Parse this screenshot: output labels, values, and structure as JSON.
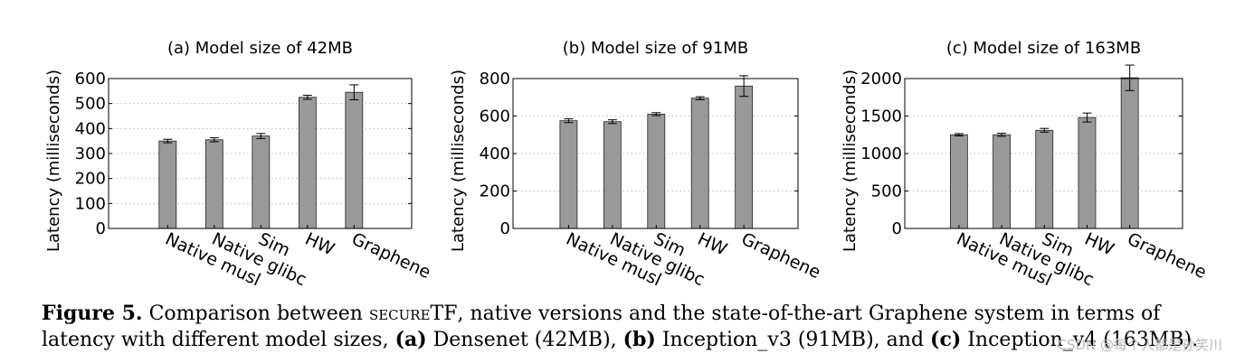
{
  "chart_data": [
    {
      "type": "bar",
      "title": "(a) Model size of 42MB",
      "ylabel": "Latency (milliseconds)",
      "xlabel": "",
      "categories": [
        "Native musl",
        "Native glibc",
        "Sim",
        "HW",
        "Graphene"
      ],
      "values": [
        350,
        355,
        370,
        525,
        545
      ],
      "errors": [
        7,
        8,
        10,
        8,
        30
      ],
      "ylim": [
        0,
        600
      ],
      "yticks": [
        0,
        100,
        200,
        300,
        400,
        500,
        600
      ],
      "grid": true
    },
    {
      "type": "bar",
      "title": "(b) Model size of 91MB",
      "ylabel": "Latency (milliseconds)",
      "xlabel": "",
      "categories": [
        "Native musl",
        "Native glibc",
        "Sim",
        "HW",
        "Graphene"
      ],
      "values": [
        575,
        570,
        610,
        695,
        760
      ],
      "errors": [
        10,
        10,
        8,
        8,
        55
      ],
      "ylim": [
        0,
        800
      ],
      "yticks": [
        0,
        200,
        400,
        600,
        800
      ],
      "grid": true
    },
    {
      "type": "bar",
      "title": "(c) Model size of 163MB",
      "ylabel": "Latency (milliseconds)",
      "xlabel": "",
      "categories": [
        "Native musl",
        "Native glibc",
        "Sim",
        "HW",
        "Graphene"
      ],
      "values": [
        1250,
        1250,
        1310,
        1480,
        2010
      ],
      "errors": [
        15,
        20,
        25,
        60,
        170
      ],
      "ylim": [
        0,
        2000
      ],
      "yticks": [
        0,
        500,
        1000,
        1500,
        2000
      ],
      "grid": true
    }
  ],
  "caption": {
    "label": "Figure 5.",
    "part1": " Comparison between ",
    "system_name": "secureTF",
    "part2": ", native versions and the state-of-the-art Graphene system in terms of latency with different model sizes, ",
    "a_label": "(a)",
    "a_text": " Densenet (42MB), ",
    "b_label": "(b)",
    "b_text": " Inception_v3 (91MB), and ",
    "c_label": "(c)",
    "c_text": " Inception_v4 (163MB)."
  },
  "watermark": "CSDN @每个人都是孙笑川",
  "colors": {
    "bar": "#999999",
    "bar_stroke": "#222222",
    "grid": "#bdbdbd",
    "axis": "#000000"
  }
}
